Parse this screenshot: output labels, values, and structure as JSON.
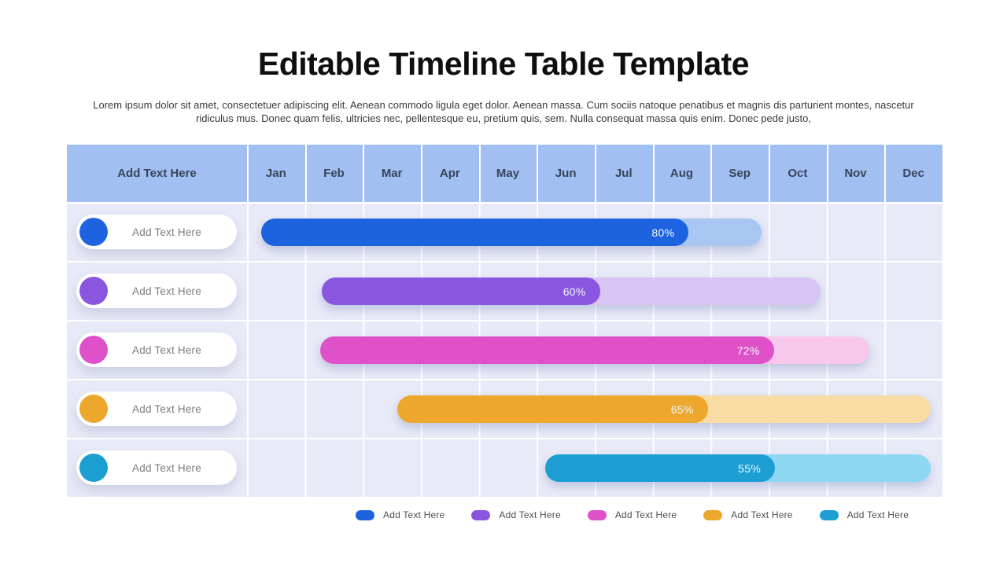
{
  "header": {
    "title": "Editable Timeline Table Template",
    "subtitle": "Lorem ipsum dolor sit amet, consectetuer adipiscing elit. Aenean commodo ligula eget dolor. Aenean massa. Cum sociis natoque penatibus et magnis dis parturient montes, nascetur ridiculus mus. Donec quam felis, ultricies nec, pellentesque eu, pretium quis, sem. Nulla consequat massa quis enim. Donec pede justo,"
  },
  "table": {
    "label_header": "Add Text Here",
    "months": [
      "Jan",
      "Feb",
      "Mar",
      "Apr",
      "May",
      "Jun",
      "Jul",
      "Aug",
      "Sep",
      "Oct",
      "Nov",
      "Dec"
    ],
    "header_bg": "#A2BFF1",
    "row_bg": "#E8EAF7"
  },
  "chart_data": {
    "type": "bar",
    "variant": "gantt_timeline",
    "title": "Editable Timeline Table Template",
    "x_axis": {
      "unit": "month",
      "labels": [
        "Jan",
        "Feb",
        "Mar",
        "Apr",
        "May",
        "Jun",
        "Jul",
        "Aug",
        "Sep",
        "Oct",
        "Nov",
        "Dec"
      ],
      "range_months": [
        0,
        12
      ]
    },
    "grid": true,
    "tasks": [
      {
        "name": "Add Text Here",
        "progress_label": "80%",
        "start_month": 0.24,
        "end_month": 8.88,
        "filled_to_month": 7.62,
        "color": "#1D63E0",
        "track_color": "#A9C6F3"
      },
      {
        "name": "Add Text Here",
        "progress_label": "60%",
        "start_month": 1.29,
        "end_month": 9.9,
        "filled_to_month": 6.09,
        "color": "#8A56E0",
        "track_color": "#D8C5F3"
      },
      {
        "name": "Add Text Here",
        "progress_label": "72%",
        "start_month": 1.26,
        "end_month": 10.74,
        "filled_to_month": 9.09,
        "color": "#DE51C8",
        "track_color": "#F8C8EC"
      },
      {
        "name": "Add Text Here",
        "progress_label": "65%",
        "start_month": 2.59,
        "end_month": 11.8,
        "filled_to_month": 7.95,
        "color": "#ECA72C",
        "track_color": "#F8DCA3"
      },
      {
        "name": "Add Text Here",
        "progress_label": "55%",
        "start_month": 5.14,
        "end_month": 11.8,
        "filled_to_month": 9.11,
        "color": "#1C9ED3",
        "track_color": "#8FD8F3"
      }
    ],
    "legend_position": "bottom"
  },
  "legend": {
    "items": [
      {
        "label": "Add Text Here",
        "color": "#1D63E0"
      },
      {
        "label": "Add Text Here",
        "color": "#8A56E0"
      },
      {
        "label": "Add Text Here",
        "color": "#DE51C8"
      },
      {
        "label": "Add Text Here",
        "color": "#ECA72C"
      },
      {
        "label": "Add Text Here",
        "color": "#1C9ED3"
      }
    ]
  }
}
